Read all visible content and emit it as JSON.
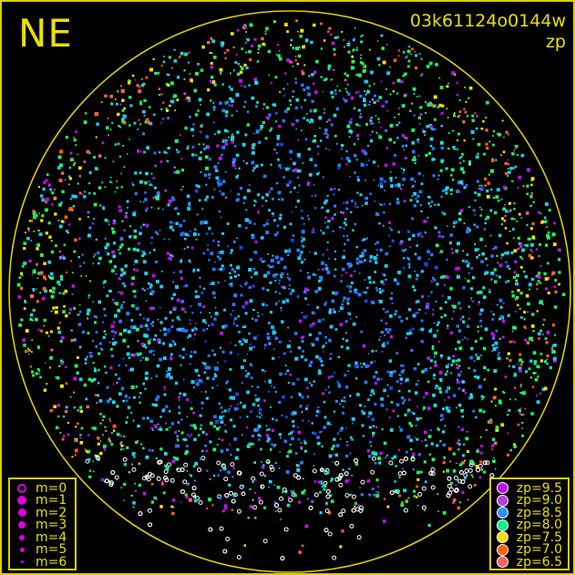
{
  "header": {
    "direction": "NE",
    "frame_id": "03k61124o0144w",
    "mode": "zp"
  },
  "magnitude_legend": {
    "symbol_color": "#e000e0",
    "items": [
      {
        "label": "m=0",
        "symbol": "open-circle"
      },
      {
        "label": "m=1",
        "symbol": "filled-circle"
      },
      {
        "label": "m=2",
        "symbol": "filled-circle"
      },
      {
        "label": "m=3",
        "symbol": "filled-circle"
      },
      {
        "label": "m=4",
        "symbol": "filled-circle"
      },
      {
        "label": "m=5",
        "symbol": "filled-circle"
      },
      {
        "label": "m=6",
        "symbol": "filled-circle"
      }
    ]
  },
  "zp_legend": {
    "items": [
      {
        "label": "zp=9.5",
        "color": "#c010f0"
      },
      {
        "label": "zp=9.0",
        "color": "#b040e0"
      },
      {
        "label": "zp=8.5",
        "color": "#3090ff"
      },
      {
        "label": "zp=8.0",
        "color": "#10f090"
      },
      {
        "label": "zp=7.5",
        "color": "#ffe000"
      },
      {
        "label": "zp=7.0",
        "color": "#ff6010"
      },
      {
        "label": "zp=6.5",
        "color": "#ff6060"
      }
    ]
  },
  "horizon_color": "#d8d000"
}
